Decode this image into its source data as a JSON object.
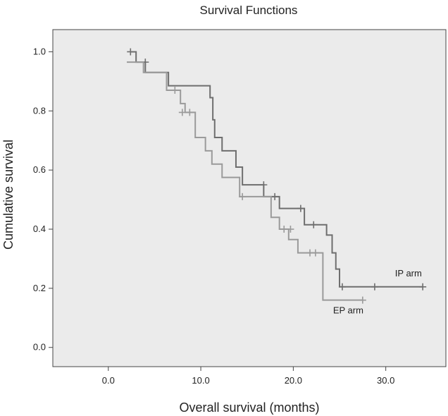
{
  "chart_data": {
    "type": "line",
    "title": "Survival Functions",
    "xlabel": "Overall survival (months)",
    "ylabel": "Cumulative survival",
    "xlim": [
      -6,
      36.5
    ],
    "ylim": [
      -0.065,
      1.075
    ],
    "xticks": [
      0,
      10,
      20,
      30
    ],
    "xtick_labels": [
      "0.0",
      "10.0",
      "20.0",
      "30.0"
    ],
    "yticks": [
      0,
      0.2,
      0.4,
      0.6,
      0.8,
      1.0
    ],
    "ytick_labels": [
      "0.0",
      "0.2",
      "0.4",
      "0.6",
      "0.8",
      "1.0"
    ],
    "grid": false,
    "series": [
      {
        "name": "IP arm",
        "color": "#6e6e6e",
        "steps": [
          [
            2.4,
            1.0
          ],
          [
            3.0,
            0.965
          ],
          [
            4.0,
            0.93
          ],
          [
            6.5,
            0.885
          ],
          [
            11.0,
            0.845
          ],
          [
            11.3,
            0.77
          ],
          [
            11.5,
            0.71
          ],
          [
            12.3,
            0.665
          ],
          [
            13.8,
            0.61
          ],
          [
            14.5,
            0.55
          ],
          [
            16.8,
            0.51
          ],
          [
            18.5,
            0.47
          ],
          [
            21.2,
            0.415
          ],
          [
            23.6,
            0.38
          ],
          [
            24.2,
            0.32
          ],
          [
            24.6,
            0.265
          ],
          [
            25.0,
            0.205
          ],
          [
            34.0,
            0.205
          ]
        ],
        "censored": [
          [
            2.4,
            1.0
          ],
          [
            4.0,
            0.965
          ],
          [
            16.8,
            0.55
          ],
          [
            18.0,
            0.51
          ],
          [
            20.8,
            0.47
          ],
          [
            22.2,
            0.415
          ],
          [
            25.3,
            0.205
          ],
          [
            28.8,
            0.205
          ],
          [
            34.0,
            0.205
          ]
        ]
      },
      {
        "name": "EP arm",
        "color": "#9a9a9a",
        "steps": [
          [
            2.0,
            0.965
          ],
          [
            3.8,
            0.93
          ],
          [
            5.8,
            0.93
          ],
          [
            6.3,
            0.87
          ],
          [
            7.8,
            0.825
          ],
          [
            8.3,
            0.795
          ],
          [
            9.4,
            0.71
          ],
          [
            10.5,
            0.665
          ],
          [
            11.2,
            0.62
          ],
          [
            12.3,
            0.575
          ],
          [
            14.2,
            0.51
          ],
          [
            17.6,
            0.44
          ],
          [
            18.5,
            0.4
          ],
          [
            19.5,
            0.365
          ],
          [
            20.5,
            0.32
          ],
          [
            23.2,
            0.16
          ],
          [
            27.5,
            0.16
          ]
        ],
        "censored": [
          [
            7.2,
            0.87
          ],
          [
            8.0,
            0.795
          ],
          [
            8.8,
            0.795
          ],
          [
            14.5,
            0.51
          ],
          [
            19.0,
            0.4
          ],
          [
            19.7,
            0.4
          ],
          [
            21.8,
            0.32
          ],
          [
            22.4,
            0.32
          ],
          [
            27.5,
            0.16
          ]
        ]
      }
    ],
    "annotations": [
      {
        "text": "IP arm",
        "x": 31.0,
        "y": 0.24
      },
      {
        "text": "EP arm",
        "x": 24.3,
        "y": 0.115
      }
    ]
  }
}
